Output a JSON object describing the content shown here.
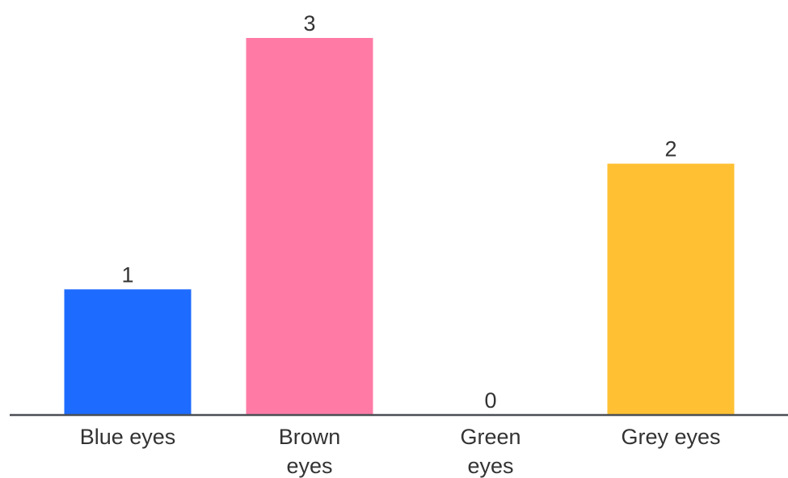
{
  "chart_data": {
    "type": "bar",
    "categories": [
      [
        "Blue eyes"
      ],
      [
        "Brown",
        "eyes"
      ],
      [
        "Green",
        "eyes"
      ],
      [
        "Grey eyes"
      ]
    ],
    "values": [
      1,
      3,
      0,
      2
    ],
    "colors": [
      "#1e6bff",
      "#ff7ba6",
      "#2fb86a",
      "#ffc133"
    ],
    "axis_color": "#4a4f55",
    "ylim": [
      0,
      3
    ],
    "grid": false,
    "legend": "none",
    "title": "",
    "xlabel": "",
    "ylabel": ""
  }
}
